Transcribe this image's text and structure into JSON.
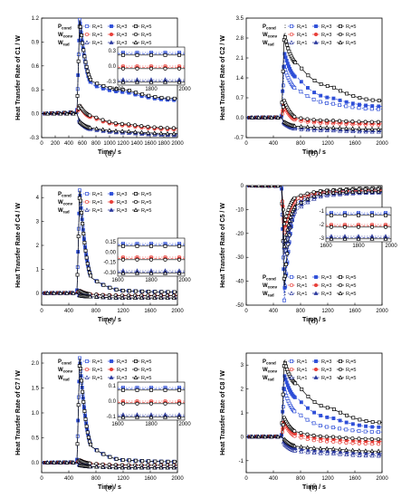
{
  "figure": {
    "x_label": "Time / s",
    "legend_rows": [
      "P",
      "W",
      "W"
    ],
    "legend_row_subs": [
      "cond",
      "conv",
      "rad"
    ],
    "rt_labels": [
      "R",
      "R",
      "R"
    ],
    "rt_subs": [
      "t",
      "t",
      "t"
    ],
    "rt_values": [
      "=1",
      "=3",
      "=5"
    ]
  },
  "chart_data": [
    {
      "type": "line",
      "panel": "(a)",
      "ylabel": "Heat Transfer Rate of  C1 / W",
      "xlim": [
        0,
        2000
      ],
      "ylim": [
        -0.3,
        1.2
      ],
      "xticks": [
        "0",
        "200",
        "400",
        "600",
        "800",
        "1000",
        "1200",
        "1400",
        "1600",
        "1800",
        "2000"
      ],
      "yticks": [
        "-0.3",
        "0.0",
        "0.3",
        "0.6",
        "0.9",
        "1.2"
      ],
      "peak_time": 560,
      "series": [
        {
          "name": "Pcond Rt=1",
          "values": [
            0,
            0.02,
            1.18,
            0.38,
            0.28,
            0.18
          ]
        },
        {
          "name": "Pcond Rt=3",
          "values": [
            0,
            0.02,
            1.18,
            0.36,
            0.27,
            0.17
          ]
        },
        {
          "name": "Pcond Rt=5",
          "values": [
            0,
            0.02,
            1.18,
            0.4,
            0.3,
            0.19
          ]
        },
        {
          "name": "Wconv Rt=1",
          "values": [
            0,
            0.01,
            0.1,
            -0.05,
            -0.15,
            -0.2
          ]
        },
        {
          "name": "Wconv Rt=3",
          "values": [
            0,
            0.01,
            0.1,
            -0.04,
            -0.14,
            -0.19
          ]
        },
        {
          "name": "Wconv Rt=5",
          "values": [
            0,
            0.01,
            0.1,
            -0.03,
            -0.13,
            -0.18
          ]
        },
        {
          "name": "Wrad Rt=1",
          "values": [
            0,
            0,
            -0.1,
            -0.2,
            -0.24,
            -0.27
          ]
        },
        {
          "name": "Wrad Rt=3",
          "values": [
            0,
            0,
            -0.1,
            -0.19,
            -0.23,
            -0.26
          ]
        },
        {
          "name": "Wrad Rt=5",
          "values": [
            0,
            0,
            -0.1,
            -0.18,
            -0.22,
            -0.25
          ]
        }
      ],
      "inset": {
        "xticks": [
          "1600",
          "1800",
          "2000"
        ],
        "yticks": [
          "0.3",
          "0.0",
          "-0.3"
        ]
      }
    },
    {
      "type": "line",
      "panel": "(b)",
      "ylabel": "Heat Transfer Rate of  C2 / W",
      "xlim": [
        0,
        2000
      ],
      "ylim": [
        -0.7,
        3.5
      ],
      "xticks": [
        "0",
        "400",
        "800",
        "1200",
        "1600",
        "2000"
      ],
      "yticks": [
        "-0.7",
        "0.0",
        "0.7",
        "1.4",
        "2.1",
        "2.8",
        "3.5"
      ],
      "peak_time": 560,
      "series": [
        {
          "name": "Pcond Rt=1",
          "values": [
            0,
            0.02,
            1.8,
            1.0,
            0.5,
            0.3
          ]
        },
        {
          "name": "Pcond Rt=3",
          "values": [
            0,
            0.02,
            2.3,
            1.4,
            0.7,
            0.4
          ]
        },
        {
          "name": "Pcond Rt=5",
          "values": [
            0,
            0.02,
            2.95,
            1.9,
            1.1,
            0.6
          ]
        },
        {
          "name": "Wconv Rt=1",
          "values": [
            0,
            0.01,
            0.4,
            -0.1,
            -0.2,
            -0.25
          ]
        },
        {
          "name": "Wconv Rt=3",
          "values": [
            0,
            0.01,
            0.5,
            -0.05,
            -0.15,
            -0.2
          ]
        },
        {
          "name": "Wconv Rt=5",
          "values": [
            0,
            0.01,
            0.6,
            0,
            -0.1,
            -0.15
          ]
        },
        {
          "name": "Wrad Rt=1",
          "values": [
            0,
            0,
            -0.2,
            -0.4,
            -0.45,
            -0.5
          ]
        },
        {
          "name": "Wrad Rt=3",
          "values": [
            0,
            0,
            -0.2,
            -0.35,
            -0.4,
            -0.45
          ]
        },
        {
          "name": "Wrad Rt=5",
          "values": [
            0,
            0,
            -0.15,
            -0.3,
            -0.35,
            -0.4
          ]
        }
      ]
    },
    {
      "type": "line",
      "panel": "(c)",
      "ylabel": "Heat Transfer Rate of  C4 / W",
      "xlim": [
        0,
        2000
      ],
      "ylim": [
        -0.5,
        4.5
      ],
      "xticks": [
        "0",
        "400",
        "800",
        "1200",
        "1600",
        "2000"
      ],
      "yticks": [
        "0",
        "1",
        "2",
        "3",
        "4"
      ],
      "peak_time": 560,
      "series": [
        {
          "name": "Pcond Rt=1",
          "values": [
            0,
            0.02,
            4.3,
            0.6,
            0.1,
            0.05
          ]
        },
        {
          "name": "Pcond Rt=3",
          "values": [
            0,
            0.02,
            4.3,
            0.6,
            0.1,
            0.05
          ]
        },
        {
          "name": "Pcond Rt=5",
          "values": [
            0,
            0.02,
            4.3,
            0.6,
            0.1,
            0.05
          ]
        },
        {
          "name": "Wconv Rt=1",
          "values": [
            0,
            0.01,
            0.1,
            -0.05,
            -0.1,
            -0.1
          ]
        },
        {
          "name": "Wconv Rt=3",
          "values": [
            0,
            0.01,
            0.1,
            -0.05,
            -0.1,
            -0.1
          ]
        },
        {
          "name": "Wconv Rt=5",
          "values": [
            0,
            0.01,
            0.1,
            -0.05,
            -0.1,
            -0.1
          ]
        },
        {
          "name": "Wrad Rt=1",
          "values": [
            0,
            0,
            -0.1,
            -0.15,
            -0.2,
            -0.2
          ]
        },
        {
          "name": "Wrad Rt=3",
          "values": [
            0,
            0,
            -0.1,
            -0.15,
            -0.2,
            -0.2
          ]
        },
        {
          "name": "Wrad Rt=5",
          "values": [
            0,
            0,
            -0.1,
            -0.15,
            -0.2,
            -0.2
          ]
        }
      ],
      "inset": {
        "xticks": [
          "1600",
          "1800",
          "2000"
        ],
        "yticks": [
          "0.15",
          "0.00",
          "-0.15",
          "-0.30"
        ]
      }
    },
    {
      "type": "line",
      "panel": "(d)",
      "ylabel": "Heat Transfer Rate of  C5 / W",
      "xlim": [
        0,
        2000
      ],
      "ylim": [
        -50,
        0
      ],
      "xticks": [
        "0",
        "400",
        "800",
        "1200",
        "1600",
        "2000"
      ],
      "yticks": [
        "0",
        "-10",
        "-20",
        "-30",
        "-40",
        "-50"
      ],
      "peak_time": 560,
      "series": [
        {
          "name": "Pcond Rt=1",
          "values": [
            0,
            -0.2,
            -48,
            -8,
            -3,
            -2
          ]
        },
        {
          "name": "Pcond Rt=3",
          "values": [
            0,
            -0.2,
            -45,
            -7,
            -2.5,
            -1.5
          ]
        },
        {
          "name": "Pcond Rt=5",
          "values": [
            0,
            -0.2,
            -42,
            -6,
            -2,
            -1
          ]
        },
        {
          "name": "Wconv Rt=1",
          "values": [
            0,
            -0.1,
            -20,
            -6,
            -3,
            -2
          ]
        },
        {
          "name": "Wconv Rt=3",
          "values": [
            0,
            -0.1,
            -18,
            -5,
            -2.5,
            -1.8
          ]
        },
        {
          "name": "Wconv Rt=5",
          "values": [
            0,
            -0.1,
            -16,
            -4.5,
            -2,
            -1.5
          ]
        },
        {
          "name": "Wrad Rt=1",
          "values": [
            0,
            -0.1,
            -30,
            -10,
            -4,
            -3
          ]
        },
        {
          "name": "Wrad Rt=3",
          "values": [
            0,
            -0.1,
            -28,
            -9,
            -3.5,
            -2.8
          ]
        },
        {
          "name": "Wrad Rt=5",
          "values": [
            0,
            -0.1,
            -26,
            -8,
            -3,
            -2.5
          ]
        }
      ],
      "inset": {
        "xticks": [
          "1600",
          "1800",
          "2000"
        ],
        "yticks": [
          "-1",
          "-2",
          "-3"
        ]
      }
    },
    {
      "type": "line",
      "panel": "(e)",
      "ylabel": "Heat Transfer Rate of  C7 / W",
      "xlim": [
        0,
        2000
      ],
      "ylim": [
        -0.2,
        2.2
      ],
      "xticks": [
        "0",
        "400",
        "800",
        "1200",
        "1600",
        "2000"
      ],
      "yticks": [
        "0.0",
        "0.5",
        "1.0",
        "1.5",
        "2.0"
      ],
      "peak_time": 560,
      "series": [
        {
          "name": "Pcond Rt=1",
          "values": [
            0,
            0.01,
            2.1,
            0.3,
            0.05,
            0.02
          ]
        },
        {
          "name": "Pcond Rt=3",
          "values": [
            0,
            0.01,
            2.1,
            0.3,
            0.05,
            0.02
          ]
        },
        {
          "name": "Pcond Rt=5",
          "values": [
            0,
            0.01,
            2.1,
            0.3,
            0.05,
            0.02
          ]
        },
        {
          "name": "Wconv Rt=1",
          "values": [
            0,
            0,
            0.05,
            -0.02,
            -0.05,
            -0.05
          ]
        },
        {
          "name": "Wconv Rt=3",
          "values": [
            0,
            0,
            0.05,
            -0.02,
            -0.05,
            -0.05
          ]
        },
        {
          "name": "Wconv Rt=5",
          "values": [
            0,
            0,
            0.05,
            -0.02,
            -0.05,
            -0.05
          ]
        },
        {
          "name": "Wrad Rt=1",
          "values": [
            0,
            0,
            -0.05,
            -0.08,
            -0.1,
            -0.1
          ]
        },
        {
          "name": "Wrad Rt=3",
          "values": [
            0,
            0,
            -0.05,
            -0.08,
            -0.1,
            -0.1
          ]
        },
        {
          "name": "Wrad Rt=5",
          "values": [
            0,
            0,
            -0.05,
            -0.08,
            -0.1,
            -0.1
          ]
        }
      ],
      "inset": {
        "xticks": [
          "1600",
          "1800",
          "2000"
        ],
        "yticks": [
          "0.1",
          "0.0",
          "-0.1"
        ]
      }
    },
    {
      "type": "line",
      "panel": "(f)",
      "ylabel": "Heat Transfer Rate of  C8 / W",
      "xlim": [
        0,
        2000
      ],
      "ylim": [
        -1.5,
        3.5
      ],
      "xticks": [
        "0",
        "400",
        "800",
        "1200",
        "1600",
        "2000"
      ],
      "yticks": [
        "-1",
        "0",
        "1",
        "2",
        "3"
      ],
      "peak_time": 560,
      "series": [
        {
          "name": "Pcond Rt=1",
          "values": [
            0,
            0.02,
            2.0,
            1.0,
            0.4,
            0.2
          ]
        },
        {
          "name": "Pcond Rt=3",
          "values": [
            0,
            0.02,
            2.6,
            1.6,
            0.8,
            0.4
          ]
        },
        {
          "name": "Pcond Rt=5",
          "values": [
            0,
            0.02,
            3.2,
            2.2,
            1.2,
            0.6
          ]
        },
        {
          "name": "Wconv Rt=1",
          "values": [
            0,
            0.01,
            0.6,
            0,
            -0.2,
            -0.3
          ]
        },
        {
          "name": "Wconv Rt=3",
          "values": [
            0,
            0.01,
            0.7,
            0.1,
            -0.1,
            -0.2
          ]
        },
        {
          "name": "Wconv Rt=5",
          "values": [
            0,
            0.01,
            0.8,
            0.2,
            0,
            -0.1
          ]
        },
        {
          "name": "Wrad Rt=1",
          "values": [
            0,
            0,
            -0.3,
            -0.6,
            -0.7,
            -0.8
          ]
        },
        {
          "name": "Wrad Rt=3",
          "values": [
            0,
            0,
            -0.2,
            -0.5,
            -0.6,
            -0.7
          ]
        },
        {
          "name": "Wrad Rt=5",
          "values": [
            0,
            0,
            -0.1,
            -0.4,
            -0.5,
            -0.6
          ]
        }
      ]
    }
  ],
  "colors": {
    "Pcond": "#2f4fd8",
    "Wconv": "#e8403a",
    "Wrad": "#2c3a9e",
    "black": "#000000"
  },
  "markers": {
    "Pcond": "square",
    "Wconv": "circle",
    "Wrad": "triangle"
  }
}
